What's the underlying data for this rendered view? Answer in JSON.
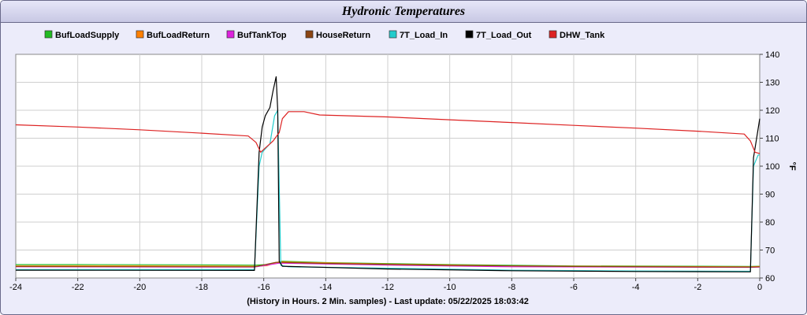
{
  "page": {
    "title": "Hydronic Temperatures"
  },
  "chart_data": {
    "type": "line",
    "title": "Hydronic Temperatures",
    "xlabel": "(History in Hours. 2 Min. samples) - Last update: 05/22/2025 18:03:42",
    "ylabel": "°F",
    "xlim": [
      -24,
      0
    ],
    "ylim": [
      60,
      140
    ],
    "x_ticks": [
      -24,
      -22,
      -20,
      -18,
      -16,
      -14,
      -12,
      -10,
      -8,
      -6,
      -4,
      -2,
      0
    ],
    "y_ticks": [
      60,
      70,
      80,
      90,
      100,
      110,
      120,
      130,
      140
    ],
    "y_axis_side": "right",
    "grid": true,
    "legend_position": "top",
    "series": [
      {
        "name": "BufLoadSupply",
        "color": "#22bb22",
        "points": [
          [
            -24,
            64.8
          ],
          [
            -22,
            64.8
          ],
          [
            -18,
            64.7
          ],
          [
            -16.3,
            64.6
          ],
          [
            -15.9,
            64.8
          ],
          [
            -15.6,
            65.5
          ],
          [
            -15.4,
            66.0
          ],
          [
            -14,
            65.5
          ],
          [
            -10,
            64.8
          ],
          [
            -6,
            64.3
          ],
          [
            -2,
            64.2
          ],
          [
            -0.3,
            64.1
          ],
          [
            0,
            64.2
          ]
        ]
      },
      {
        "name": "BufLoadReturn",
        "color": "#ff8000",
        "points": [
          [
            -24,
            64.3
          ],
          [
            -20,
            64.3
          ],
          [
            -16.3,
            64.2
          ],
          [
            -15.9,
            64.4
          ],
          [
            -15.5,
            65.8
          ],
          [
            -15,
            65.6
          ],
          [
            -12,
            65.0
          ],
          [
            -8,
            64.3
          ],
          [
            -4,
            64.1
          ],
          [
            -0.3,
            64.0
          ],
          [
            0,
            64.1
          ]
        ]
      },
      {
        "name": "BufTankTop",
        "color": "#dd22dd",
        "points": [
          [
            -24,
            64.0
          ],
          [
            -16.3,
            63.9
          ],
          [
            -15.5,
            65.3
          ],
          [
            -12,
            64.6
          ],
          [
            -8,
            64.0
          ],
          [
            -0.3,
            63.8
          ],
          [
            0,
            63.9
          ]
        ]
      },
      {
        "name": "HouseReturn",
        "color": "#8b4513",
        "points": [
          [
            -24,
            64.1
          ],
          [
            -16.3,
            64.0
          ],
          [
            -15.6,
            65.6
          ],
          [
            -14,
            65.2
          ],
          [
            -10,
            64.5
          ],
          [
            -6,
            64.1
          ],
          [
            -0.3,
            63.9
          ],
          [
            0,
            64.0
          ]
        ]
      },
      {
        "name": "7T_Load_In",
        "color": "#22cccc",
        "points": [
          [
            -24,
            63.0
          ],
          [
            -16.3,
            63.0
          ],
          [
            -16.15,
            100
          ],
          [
            -16.05,
            105
          ],
          [
            -15.8,
            108
          ],
          [
            -15.65,
            118
          ],
          [
            -15.55,
            120
          ],
          [
            -15.45,
            64.5
          ],
          [
            -15.2,
            64.0
          ],
          [
            -12,
            63.5
          ],
          [
            -8,
            62.8
          ],
          [
            -4,
            62.5
          ],
          [
            -0.3,
            62.4
          ],
          [
            -0.2,
            100
          ],
          [
            -0.05,
            104
          ],
          [
            0,
            104
          ]
        ]
      },
      {
        "name": "7T_Load_Out",
        "color": "#000000",
        "points": [
          [
            -24,
            62.8
          ],
          [
            -16.3,
            62.7
          ],
          [
            -16.15,
            105
          ],
          [
            -16.05,
            114
          ],
          [
            -15.95,
            118
          ],
          [
            -15.8,
            121
          ],
          [
            -15.7,
            127
          ],
          [
            -15.6,
            132
          ],
          [
            -15.55,
            120
          ],
          [
            -15.5,
            66
          ],
          [
            -15.4,
            64.2
          ],
          [
            -12,
            63.2
          ],
          [
            -8,
            62.6
          ],
          [
            -4,
            62.3
          ],
          [
            -0.3,
            62.2
          ],
          [
            -0.2,
            103
          ],
          [
            -0.1,
            110
          ],
          [
            0,
            117
          ]
        ]
      },
      {
        "name": "DHW_Tank",
        "color": "#dd2222",
        "points": [
          [
            -24,
            114.8
          ],
          [
            -22,
            114.0
          ],
          [
            -20,
            113.0
          ],
          [
            -18,
            111.8
          ],
          [
            -16.5,
            110.8
          ],
          [
            -16.25,
            108.5
          ],
          [
            -16.1,
            105
          ],
          [
            -15.9,
            107
          ],
          [
            -15.7,
            109
          ],
          [
            -15.5,
            112
          ],
          [
            -15.4,
            117
          ],
          [
            -15.2,
            119.5
          ],
          [
            -14.7,
            119.5
          ],
          [
            -14.2,
            118.3
          ],
          [
            -12,
            117.6
          ],
          [
            -10,
            116.6
          ],
          [
            -8,
            115.6
          ],
          [
            -6,
            114.6
          ],
          [
            -4,
            113.6
          ],
          [
            -2,
            112.5
          ],
          [
            -0.5,
            111.5
          ],
          [
            -0.3,
            109
          ],
          [
            -0.15,
            105
          ],
          [
            0,
            104.5
          ]
        ]
      }
    ]
  }
}
